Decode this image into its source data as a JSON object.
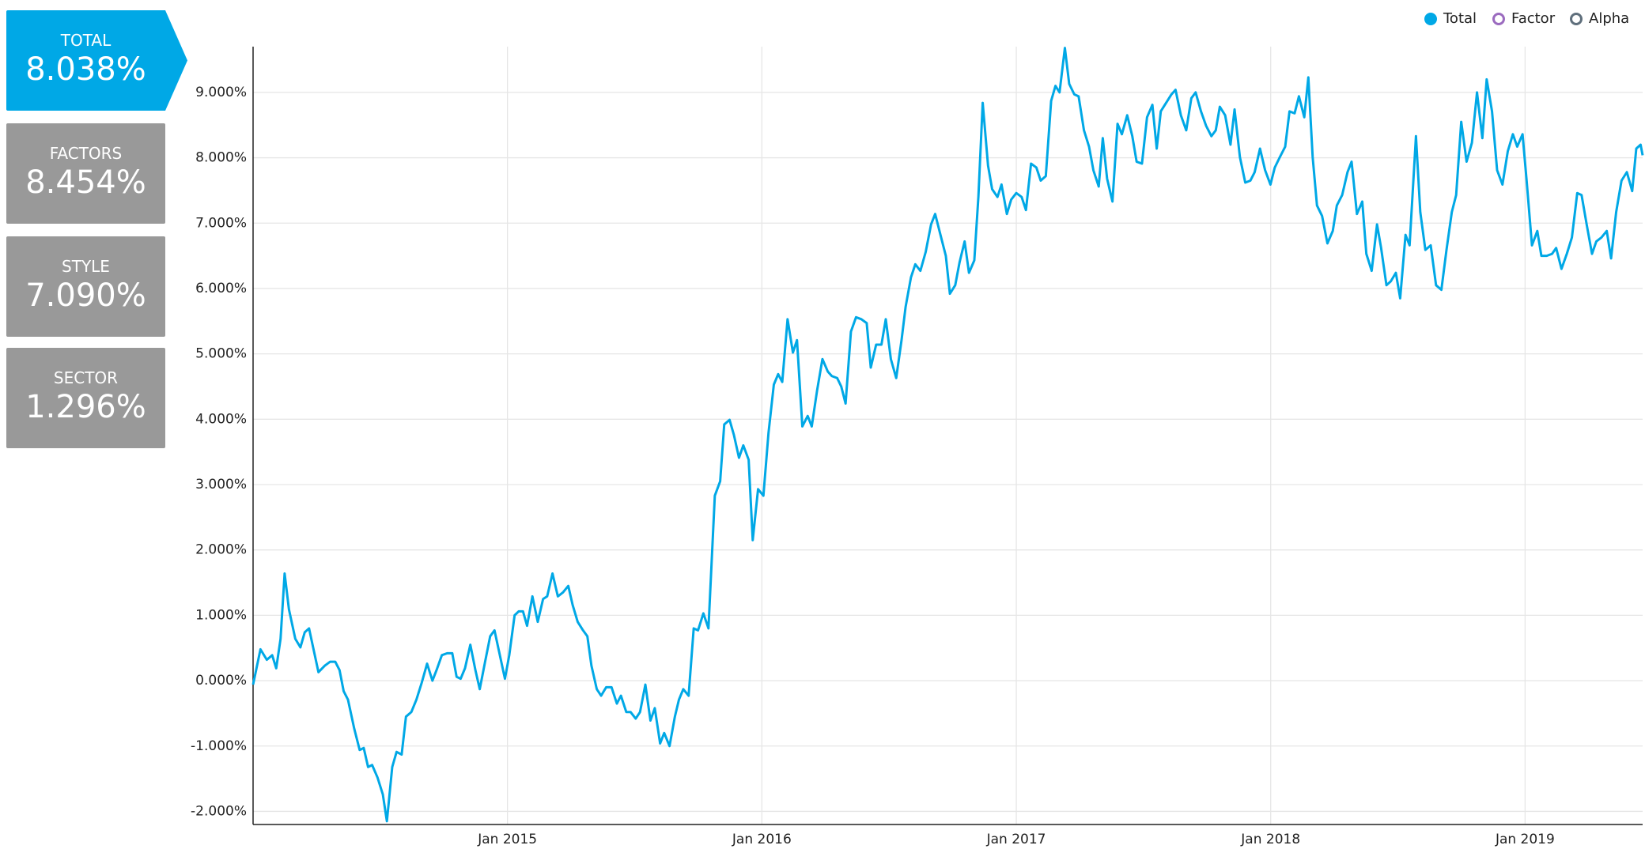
{
  "cards": [
    {
      "label": "TOTAL",
      "value": "8.038%",
      "active": true
    },
    {
      "label": "FACTORS",
      "value": "8.454%",
      "active": false
    },
    {
      "label": "STYLE",
      "value": "7.090%",
      "active": false
    },
    {
      "label": "SECTOR",
      "value": "1.296%",
      "active": false
    }
  ],
  "chart_data": {
    "type": "line",
    "legend_items": [
      {
        "name": "Total",
        "color": "#00a8e6",
        "active": true
      },
      {
        "name": "Factor",
        "color": "#9b6bbf",
        "active": false
      },
      {
        "name": "Alpha",
        "color": "#5f6f7c",
        "active": false
      }
    ],
    "legend_position": "top-right",
    "grid": true,
    "xlim": [
      2014,
      2019.462
    ],
    "xticks": [
      {
        "value": 2015,
        "label": "Jan 2015"
      },
      {
        "value": 2016,
        "label": "Jan 2016"
      },
      {
        "value": 2017,
        "label": "Jan 2017"
      },
      {
        "value": 2018,
        "label": "Jan 2018"
      },
      {
        "value": 2019,
        "label": "Jan 2019"
      }
    ],
    "ylim": [
      -2.2,
      9.7
    ],
    "yticks": [
      {
        "value": -2,
        "label": "-2.000%"
      },
      {
        "value": -1,
        "label": "-1.000%"
      },
      {
        "value": 0,
        "label": "0.000%"
      },
      {
        "value": 1,
        "label": "1.000%"
      },
      {
        "value": 2,
        "label": "2.000%"
      },
      {
        "value": 3,
        "label": "3.000%"
      },
      {
        "value": 4,
        "label": "4.000%"
      },
      {
        "value": 5,
        "label": "5.000%"
      },
      {
        "value": 6,
        "label": "6.000%"
      },
      {
        "value": 7,
        "label": "7.000%"
      },
      {
        "value": 8,
        "label": "8.000%"
      },
      {
        "value": 9,
        "label": "9.000%"
      }
    ],
    "x": [
      2014.0,
      2014.029,
      2014.054,
      2014.075,
      2014.091,
      2014.108,
      2014.124,
      2014.141,
      2014.166,
      2014.186,
      2014.203,
      2014.22,
      2014.236,
      2014.257,
      2014.282,
      2014.303,
      2014.323,
      2014.34,
      2014.356,
      2014.373,
      2014.398,
      2014.419,
      2014.435,
      2014.452,
      2014.468,
      2014.489,
      2014.51,
      2014.526,
      2014.547,
      2014.564,
      2014.584,
      2014.601,
      2014.622,
      2014.642,
      2014.663,
      2014.684,
      2014.705,
      2014.721,
      2014.742,
      2014.763,
      2014.783,
      2014.8,
      2014.816,
      2014.833,
      2014.854,
      2014.874,
      2014.891,
      2014.912,
      2014.932,
      2014.949,
      2014.97,
      2014.99,
      2015.007,
      2015.028,
      2015.044,
      2015.061,
      2015.077,
      2015.098,
      2015.119,
      2015.14,
      2015.156,
      2015.177,
      2015.198,
      2015.218,
      2015.239,
      2015.256,
      2015.276,
      2015.297,
      2015.314,
      2015.33,
      2015.351,
      2015.368,
      2015.388,
      2015.409,
      2015.43,
      2015.446,
      2015.467,
      2015.484,
      2015.504,
      2015.521,
      2015.542,
      2015.562,
      2015.579,
      2015.6,
      2015.616,
      2015.637,
      2015.658,
      2015.674,
      2015.691,
      2015.712,
      2015.732,
      2015.749,
      2015.77,
      2015.79,
      2015.815,
      2015.836,
      2015.852,
      2015.873,
      2015.89,
      2015.91,
      2015.927,
      2015.948,
      2015.964,
      2015.985,
      2016.006,
      2016.026,
      2016.047,
      2016.064,
      2016.08,
      2016.101,
      2016.122,
      2016.138,
      2016.159,
      2016.18,
      2016.196,
      2016.217,
      2016.238,
      2016.259,
      2016.275,
      2016.296,
      2016.312,
      2016.329,
      2016.35,
      2016.37,
      2016.391,
      2016.412,
      2016.428,
      2016.449,
      2016.47,
      2016.487,
      2016.507,
      2016.528,
      2016.549,
      2016.565,
      2016.586,
      2016.603,
      2016.623,
      2016.644,
      2016.665,
      2016.681,
      2016.702,
      2016.723,
      2016.739,
      2016.76,
      2016.777,
      2016.797,
      2016.814,
      2016.835,
      2016.851,
      2016.868,
      2016.889,
      2016.905,
      2016.926,
      2016.942,
      2016.963,
      2016.98,
      2017.0,
      2017.021,
      2017.038,
      2017.058,
      2017.079,
      2017.096,
      2017.116,
      2017.137,
      2017.154,
      2017.17,
      2017.191,
      2017.208,
      2017.228,
      2017.245,
      2017.266,
      2017.286,
      2017.303,
      2017.324,
      2017.34,
      2017.357,
      2017.378,
      2017.398,
      2017.415,
      2017.436,
      2017.456,
      2017.473,
      2017.494,
      2017.514,
      2017.535,
      2017.552,
      2017.568,
      2017.589,
      2017.61,
      2017.626,
      2017.647,
      2017.668,
      2017.688,
      2017.705,
      2017.726,
      2017.746,
      2017.767,
      2017.784,
      2017.8,
      2017.821,
      2017.842,
      2017.858,
      2017.879,
      2017.9,
      2017.92,
      2017.937,
      2017.958,
      2017.978,
      2017.999,
      2018.016,
      2018.036,
      2018.057,
      2018.074,
      2018.094,
      2018.111,
      2018.132,
      2018.148,
      2018.165,
      2018.182,
      2018.202,
      2018.223,
      2018.244,
      2018.26,
      2018.281,
      2018.302,
      2018.318,
      2018.339,
      2018.36,
      2018.376,
      2018.397,
      2018.418,
      2018.434,
      2018.455,
      2018.472,
      2018.492,
      2018.509,
      2018.53,
      2018.546,
      2018.571,
      2018.588,
      2018.608,
      2018.629,
      2018.65,
      2018.671,
      2018.691,
      2018.712,
      2018.729,
      2018.749,
      2018.77,
      2018.791,
      2018.811,
      2018.832,
      2018.849,
      2018.87,
      2018.89,
      2018.911,
      2018.932,
      2018.952,
      2018.969,
      2018.99,
      2019.006,
      2019.027,
      2019.048,
      2019.064,
      2019.085,
      2019.106,
      2019.122,
      2019.143,
      2019.164,
      2019.184,
      2019.205,
      2019.222,
      2019.242,
      2019.263,
      2019.28,
      2019.3,
      2019.321,
      2019.338,
      2019.358,
      2019.379,
      2019.4,
      2019.421,
      2019.437,
      2019.454,
      2019.462
    ],
    "series": [
      {
        "name": "Total",
        "color": "#00a8e6",
        "values": [
          -0.06,
          0.48,
          0.32,
          0.39,
          0.19,
          0.64,
          1.64,
          1.09,
          0.64,
          0.51,
          0.74,
          0.8,
          0.51,
          0.13,
          0.23,
          0.29,
          0.29,
          0.16,
          -0.16,
          -0.29,
          -0.74,
          -1.06,
          -1.03,
          -1.32,
          -1.29,
          -1.48,
          -1.74,
          -2.15,
          -1.32,
          -1.09,
          -1.13,
          -0.55,
          -0.48,
          -0.29,
          -0.03,
          0.26,
          0.0,
          0.16,
          0.39,
          0.42,
          0.42,
          0.06,
          0.03,
          0.19,
          0.55,
          0.16,
          -0.13,
          0.29,
          0.68,
          0.77,
          0.39,
          0.03,
          0.39,
          1.0,
          1.06,
          1.06,
          0.84,
          1.29,
          0.9,
          1.25,
          1.29,
          1.64,
          1.29,
          1.35,
          1.45,
          1.16,
          0.9,
          0.77,
          0.68,
          0.23,
          -0.13,
          -0.23,
          -0.1,
          -0.1,
          -0.35,
          -0.23,
          -0.48,
          -0.48,
          -0.58,
          -0.48,
          -0.06,
          -0.61,
          -0.42,
          -0.96,
          -0.8,
          -1.0,
          -0.55,
          -0.29,
          -0.13,
          -0.23,
          0.8,
          0.77,
          1.03,
          0.8,
          2.83,
          3.05,
          3.92,
          3.99,
          3.76,
          3.41,
          3.6,
          3.38,
          2.15,
          2.93,
          2.83,
          3.79,
          4.53,
          4.69,
          4.57,
          5.53,
          5.02,
          5.21,
          3.89,
          4.05,
          3.89,
          4.44,
          4.92,
          4.73,
          4.66,
          4.63,
          4.5,
          4.24,
          5.34,
          5.56,
          5.53,
          5.47,
          4.79,
          5.14,
          5.14,
          5.53,
          4.92,
          4.63,
          5.21,
          5.72,
          6.17,
          6.37,
          6.27,
          6.56,
          6.98,
          7.14,
          6.82,
          6.5,
          5.92,
          6.05,
          6.4,
          6.72,
          6.24,
          6.43,
          7.4,
          8.84,
          7.88,
          7.52,
          7.4,
          7.59,
          7.14,
          7.36,
          7.46,
          7.4,
          7.2,
          7.91,
          7.85,
          7.65,
          7.72,
          8.87,
          9.1,
          9.0,
          9.68,
          9.13,
          8.97,
          8.94,
          8.42,
          8.17,
          7.81,
          7.56,
          8.3,
          7.68,
          7.33,
          8.52,
          8.36,
          8.65,
          8.33,
          7.94,
          7.91,
          8.62,
          8.81,
          8.14,
          8.71,
          8.84,
          8.97,
          9.04,
          8.65,
          8.42,
          8.91,
          9.0,
          8.71,
          8.49,
          8.33,
          8.42,
          8.78,
          8.65,
          8.2,
          8.74,
          8.01,
          7.62,
          7.65,
          7.78,
          8.14,
          7.81,
          7.59,
          7.85,
          8.01,
          8.17,
          8.71,
          8.68,
          8.94,
          8.62,
          9.23,
          8.01,
          7.27,
          7.11,
          6.69,
          6.88,
          7.27,
          7.43,
          7.78,
          7.94,
          7.14,
          7.33,
          6.53,
          6.27,
          6.98,
          6.62,
          6.05,
          6.11,
          6.24,
          5.85,
          6.82,
          6.66,
          8.33,
          7.17,
          6.59,
          6.66,
          6.05,
          5.98,
          6.59,
          7.17,
          7.43,
          8.55,
          7.94,
          8.23,
          9.0,
          8.3,
          9.2,
          8.71,
          7.81,
          7.59,
          8.1,
          8.36,
          8.17,
          8.36,
          7.65,
          6.66,
          6.88,
          6.5,
          6.5,
          6.53,
          6.62,
          6.3,
          6.53,
          6.78,
          7.46,
          7.43,
          6.98,
          6.53,
          6.72,
          6.78,
          6.88,
          6.46,
          7.17,
          7.65,
          7.78,
          7.49,
          8.14,
          8.2,
          8.038
        ]
      }
    ]
  }
}
